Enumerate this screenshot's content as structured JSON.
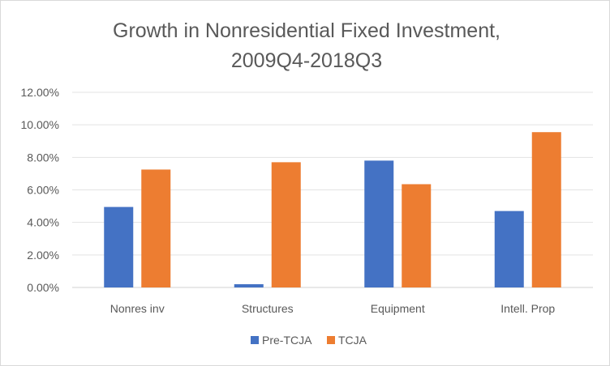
{
  "chart_data": {
    "type": "bar",
    "title_lines": [
      "Growth in Nonresidential Fixed Investment,",
      "2009Q4-2018Q3"
    ],
    "categories": [
      "Nonres inv",
      "Structures",
      "Equipment",
      "Intell. Prop"
    ],
    "series": [
      {
        "name": "Pre-TCJA",
        "color": "#4472C4",
        "values": [
          4.95,
          0.2,
          7.8,
          4.7
        ]
      },
      {
        "name": "TCJA",
        "color": "#ED7D31",
        "values": [
          7.25,
          7.7,
          6.35,
          9.55
        ]
      }
    ],
    "ylim": [
      0,
      12
    ],
    "yticks": [
      "0.00%",
      "2.00%",
      "4.00%",
      "6.00%",
      "8.00%",
      "10.00%",
      "12.00%"
    ],
    "grid": true,
    "legend_position": "bottom",
    "xlabel": "",
    "ylabel": ""
  }
}
